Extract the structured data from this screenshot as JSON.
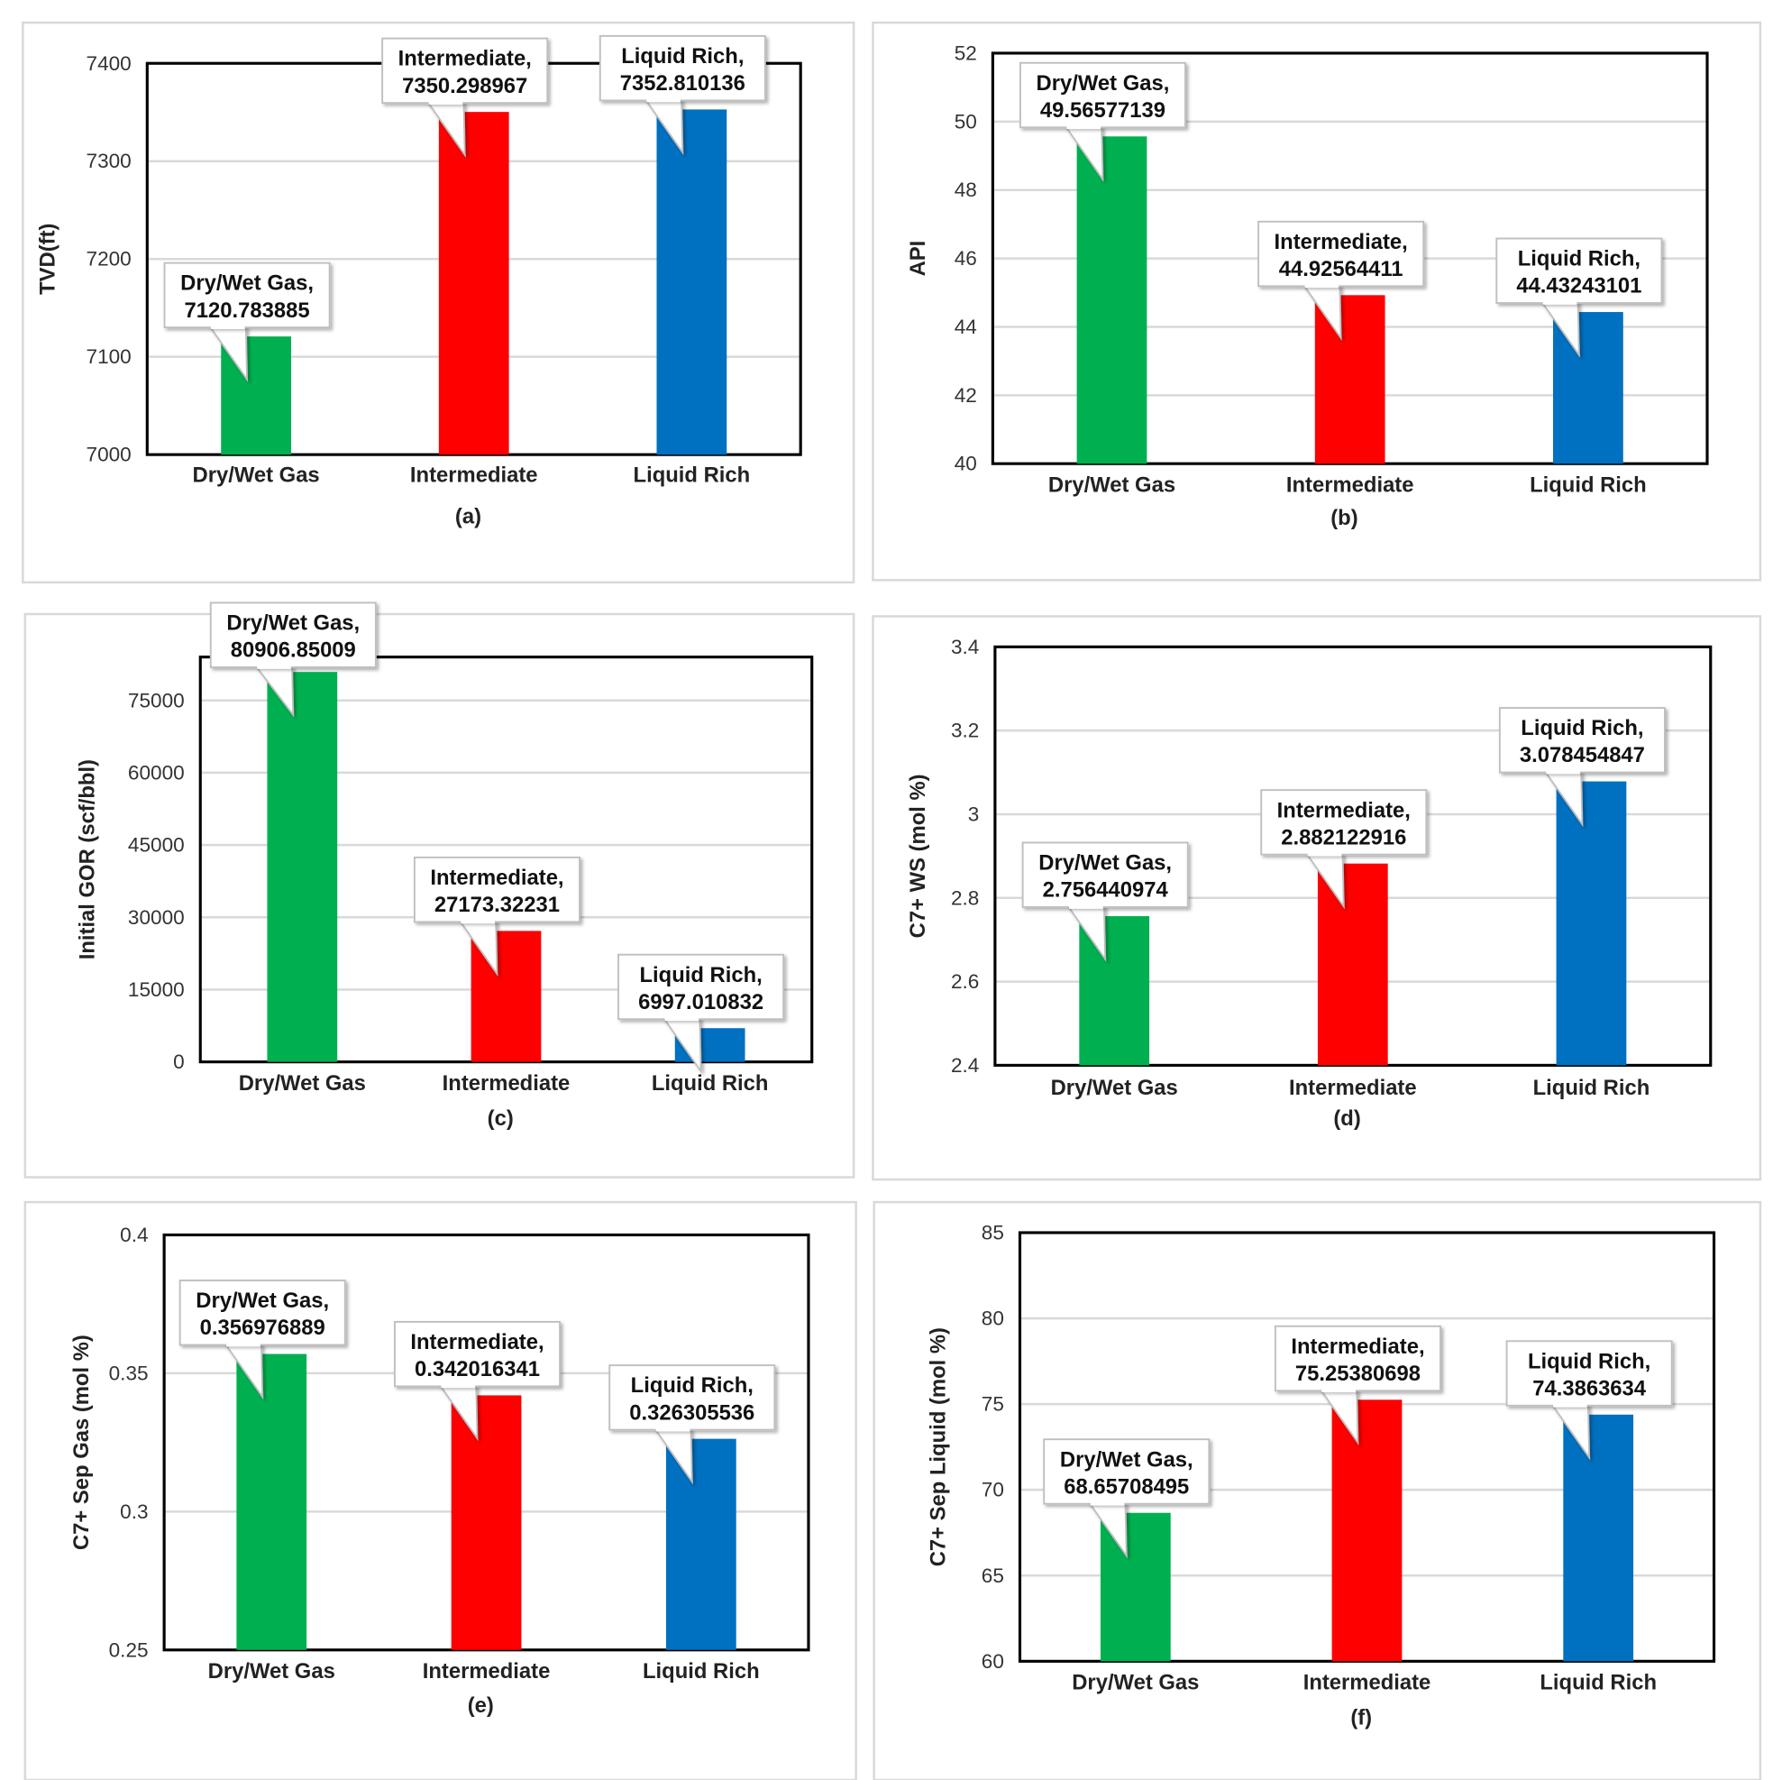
{
  "colors": {
    "Dry/Wet Gas": "#00b050",
    "Intermediate": "#ff0000",
    "Liquid Rich": "#0070c0",
    "grid": "#d9d9d9",
    "frame": "#000000"
  },
  "chart_data": [
    {
      "type": "bar",
      "subplot_label": "(a)",
      "ylabel": "TVD(ft)",
      "categories": [
        "Dry/Wet Gas",
        "Intermediate",
        "Liquid Rich"
      ],
      "values": [
        7120.783885,
        7350.298967,
        7352.810136
      ],
      "data_labels": [
        [
          "Dry/Wet Gas,",
          "7120.783885"
        ],
        [
          "Intermediate,",
          "7350.298967"
        ],
        [
          "Liquid Rich,",
          "7352.810136"
        ]
      ],
      "ylim": [
        7000,
        7400
      ],
      "yticks": [
        "7000",
        "7100",
        "7200",
        "7300",
        "7400"
      ],
      "grid": true
    },
    {
      "type": "bar",
      "subplot_label": "(b)",
      "ylabel": "API",
      "categories": [
        "Dry/Wet Gas",
        "Intermediate",
        "Liquid Rich"
      ],
      "values": [
        49.56577139,
        44.92564411,
        44.43243101
      ],
      "data_labels": [
        [
          "Dry/Wet Gas,",
          "49.56577139"
        ],
        [
          "Intermediate,",
          "44.92564411"
        ],
        [
          "Liquid Rich,",
          "44.43243101"
        ]
      ],
      "ylim": [
        40,
        52
      ],
      "yticks": [
        "40",
        "42",
        "44",
        "46",
        "48",
        "50",
        "52"
      ],
      "grid": true
    },
    {
      "type": "bar",
      "subplot_label": "(c)",
      "ylabel": "Initial GOR (scf/bbl)",
      "categories": [
        "Dry/Wet Gas",
        "Intermediate",
        "Liquid Rich"
      ],
      "values": [
        80906.85009,
        27173.32231,
        6997.010832
      ],
      "data_labels": [
        [
          "Dry/Wet Gas,",
          "80906.85009"
        ],
        [
          "Intermediate,",
          "27173.32231"
        ],
        [
          "Liquid Rich,",
          "6997.010832"
        ]
      ],
      "ylim": [
        0,
        84000
      ],
      "yticks": [
        "0",
        "15000",
        "30000",
        "45000",
        "60000",
        "75000"
      ],
      "grid": true
    },
    {
      "type": "bar",
      "subplot_label": "(d)",
      "ylabel": "C7+ WS (mol %)",
      "categories": [
        "Dry/Wet Gas",
        "Intermediate",
        "Liquid Rich"
      ],
      "values": [
        2.756440974,
        2.882122916,
        3.078454847
      ],
      "data_labels": [
        [
          "Dry/Wet Gas,",
          "2.756440974"
        ],
        [
          "Intermediate,",
          "2.882122916"
        ],
        [
          "Liquid Rich,",
          "3.078454847"
        ]
      ],
      "ylim": [
        2.4,
        3.4
      ],
      "yticks": [
        "2.4",
        "2.6",
        "2.8",
        "3",
        "3.2",
        "3.4"
      ],
      "grid": true
    },
    {
      "type": "bar",
      "subplot_label": "(e)",
      "ylabel": "C7+ Sep Gas (mol %)",
      "categories": [
        "Dry/Wet Gas",
        "Intermediate",
        "Liquid Rich"
      ],
      "values": [
        0.356976889,
        0.342016341,
        0.326305536
      ],
      "data_labels": [
        [
          "Dry/Wet Gas,",
          "0.356976889"
        ],
        [
          "Intermediate,",
          "0.342016341"
        ],
        [
          "Liquid Rich,",
          "0.326305536"
        ]
      ],
      "ylim": [
        0.25,
        0.4
      ],
      "yticks": [
        "0.25",
        "0.3",
        "0.35",
        "0.4"
      ],
      "grid": true
    },
    {
      "type": "bar",
      "subplot_label": "(f)",
      "ylabel": "C7+ Sep Liquid (mol %)",
      "categories": [
        "Dry/Wet Gas",
        "Intermediate",
        "Liquid Rich"
      ],
      "values": [
        68.65708495,
        75.25380698,
        74.3863634
      ],
      "data_labels": [
        [
          "Dry/Wet Gas,",
          "68.65708495"
        ],
        [
          "Intermediate,",
          "75.25380698"
        ],
        [
          "Liquid Rich,",
          "74.3863634"
        ]
      ],
      "ylim": [
        60,
        85
      ],
      "yticks": [
        "60",
        "65",
        "70",
        "75",
        "80",
        "85"
      ],
      "grid": true
    }
  ]
}
